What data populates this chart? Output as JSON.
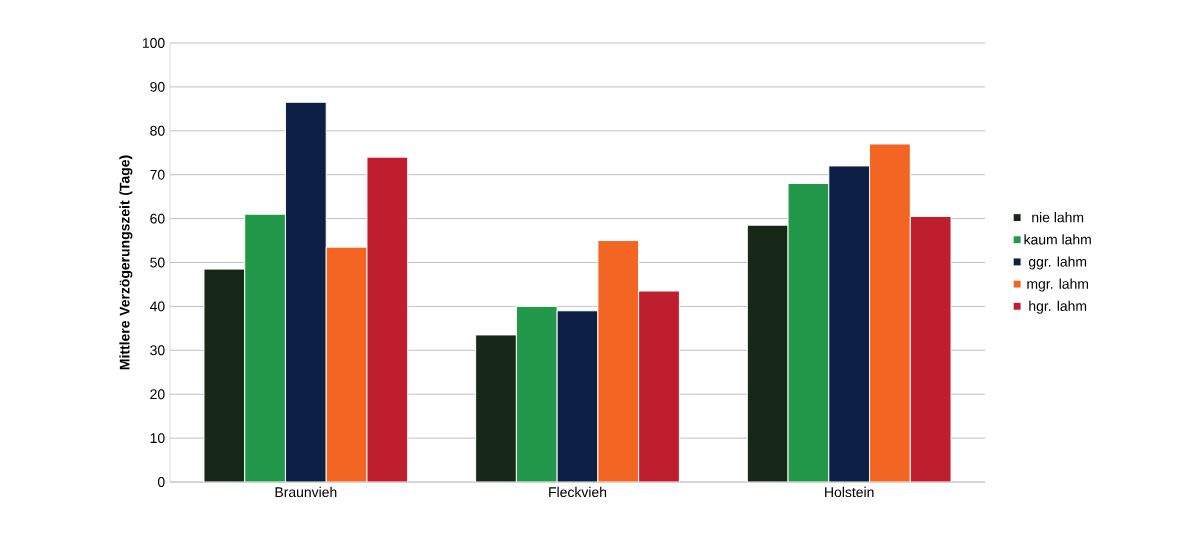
{
  "chart_data": {
    "type": "bar",
    "ylabel": "Mittlere Verzögerungszeit (Tage)",
    "categories": [
      "Braunvieh",
      "Fleckvieh",
      "Holstein"
    ],
    "series": [
      {
        "name": "nie lahm",
        "color": "#182818",
        "values": [
          48.5,
          33.5,
          58.5
        ]
      },
      {
        "name": "kaum lahm",
        "color": "#22994a",
        "values": [
          61,
          40,
          68
        ]
      },
      {
        "name": "ggr. lahm",
        "color": "#0d1f45",
        "values": [
          86.5,
          39,
          72
        ]
      },
      {
        "name": "mgr. lahm",
        "color": "#f26522",
        "values": [
          53.5,
          55,
          77
        ]
      },
      {
        "name": "hgr. lahm",
        "color": "#be1e2d",
        "values": [
          74,
          43.5,
          60.5
        ]
      }
    ],
    "ylim": [
      0,
      100
    ],
    "yticks": [
      0,
      10,
      20,
      30,
      40,
      50,
      60,
      70,
      80,
      90,
      100
    ],
    "grid": "y",
    "legend": "right"
  }
}
